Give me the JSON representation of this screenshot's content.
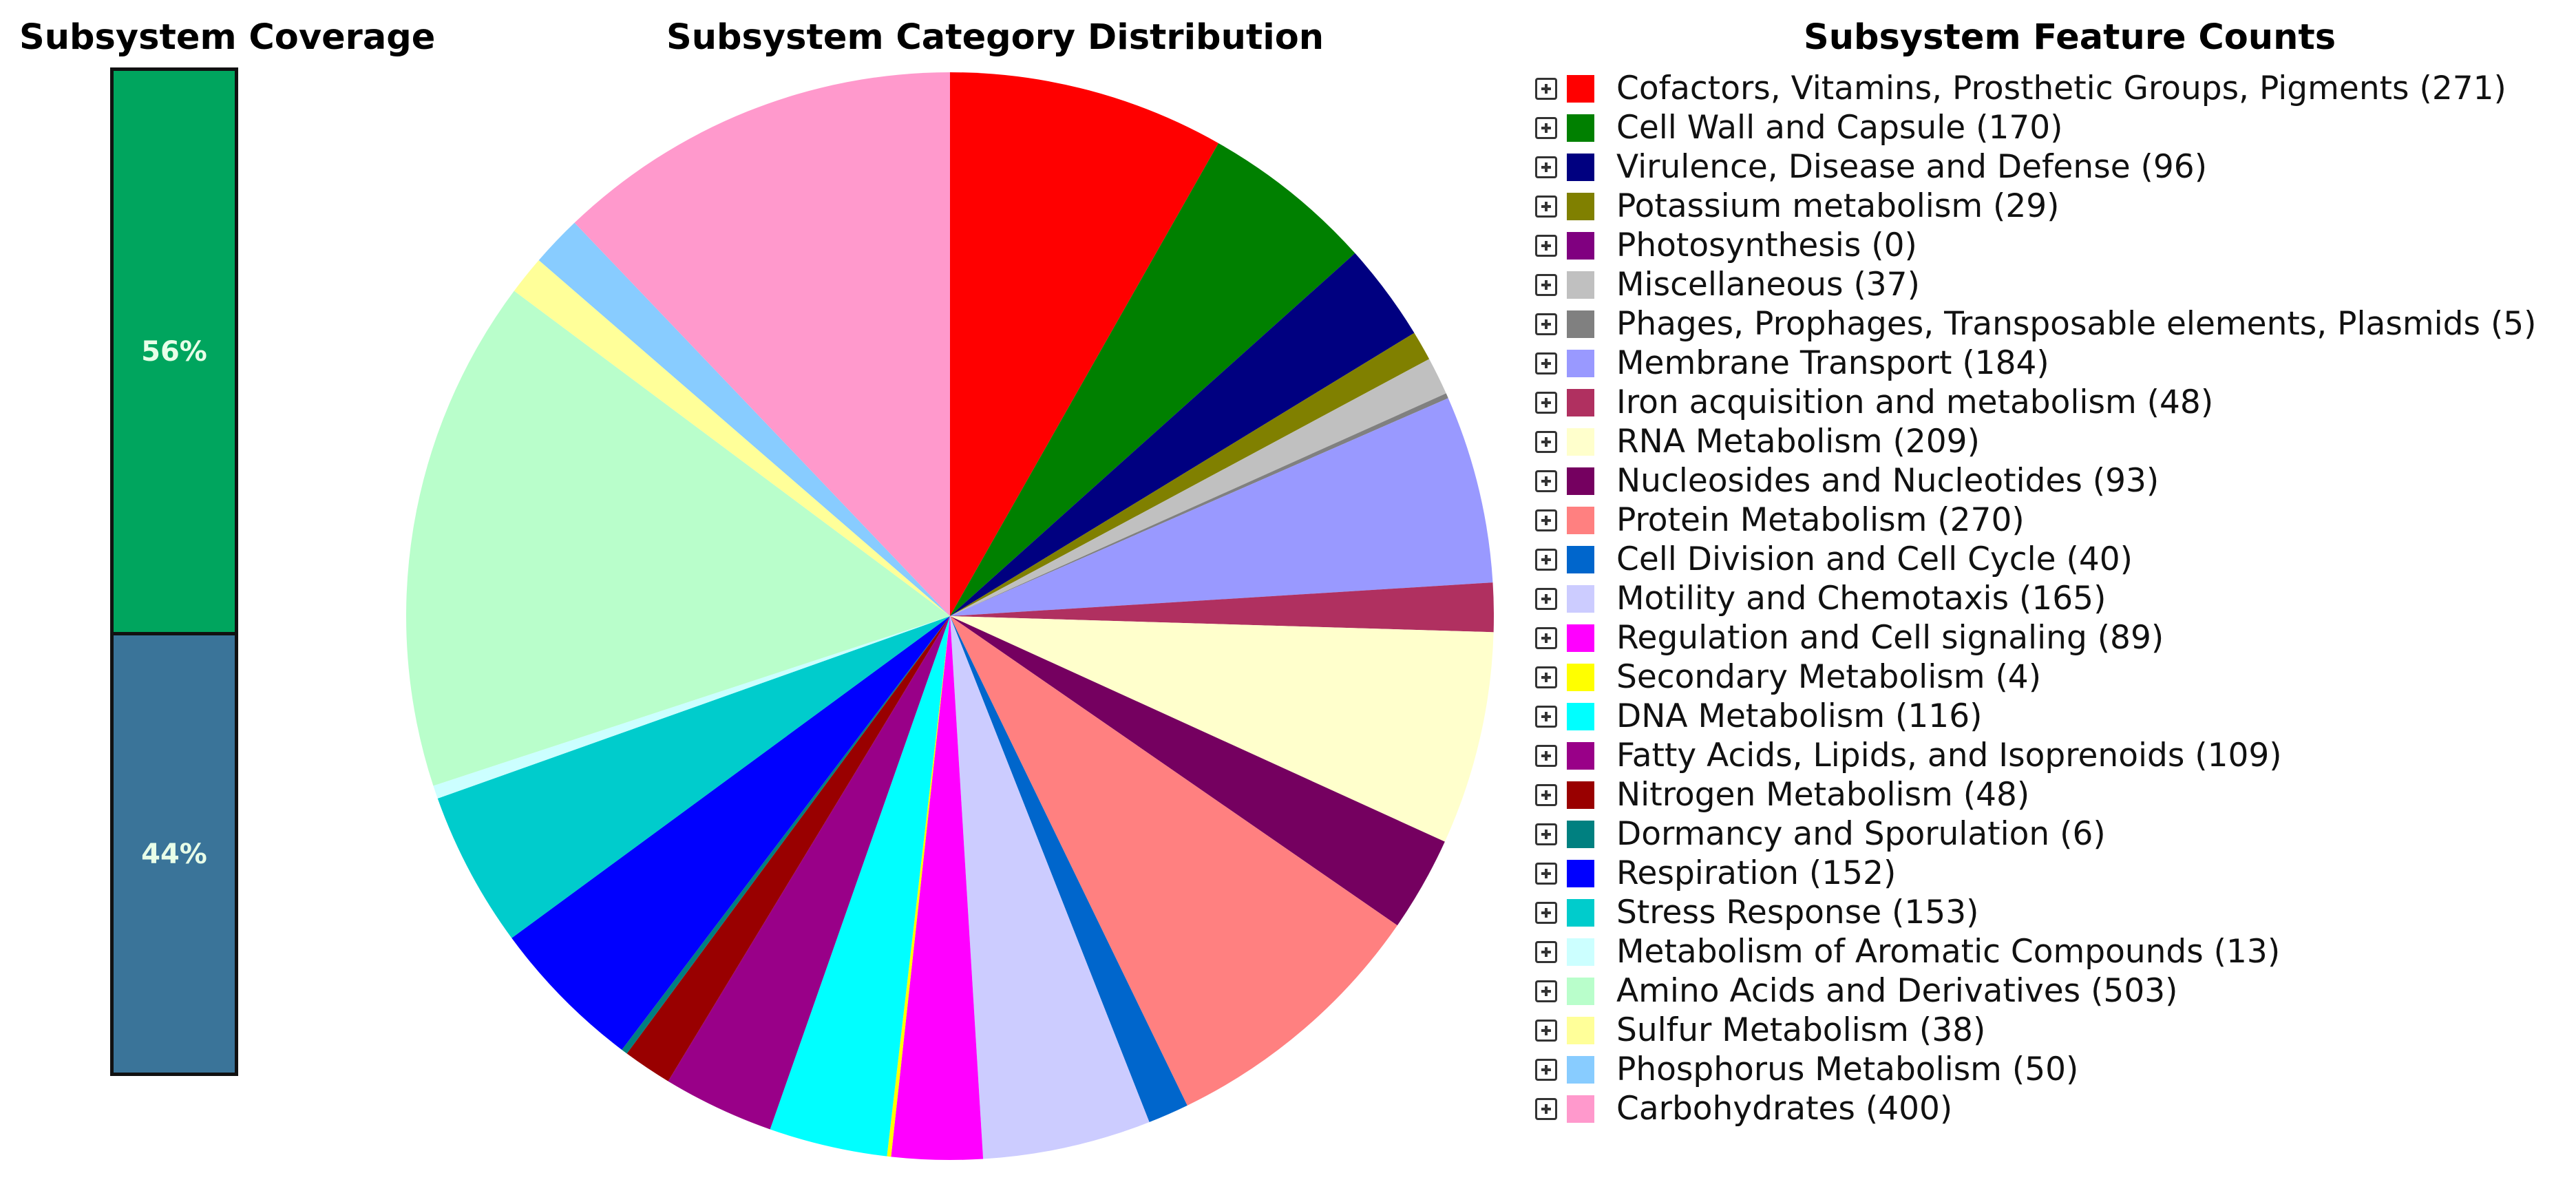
{
  "chart_data": [
    {
      "type": "bar",
      "title": "Subsystem Coverage",
      "segments": [
        {
          "label": "56%",
          "value": 56,
          "color": "#00a55e"
        },
        {
          "label": "44%",
          "value": 44,
          "color": "#3a7499"
        }
      ]
    },
    {
      "type": "pie",
      "title": "Subsystem Category Distribution"
    },
    {
      "type": "table",
      "title": "Subsystem Feature Counts",
      "categories": [
        {
          "name": "Cofactors, Vitamins, Prosthetic Groups, Pigments",
          "value": 271,
          "label": "Cofactors, Vitamins, Prosthetic Groups, Pigments (271)",
          "color": "#ff0000"
        },
        {
          "name": "Cell Wall and Capsule",
          "value": 170,
          "label": "Cell Wall and Capsule (170)",
          "color": "#008000"
        },
        {
          "name": "Virulence, Disease and Defense",
          "value": 96,
          "label": "Virulence, Disease and Defense (96)",
          "color": "#000080"
        },
        {
          "name": "Potassium metabolism",
          "value": 29,
          "label": "Potassium metabolism (29)",
          "color": "#808000"
        },
        {
          "name": "Photosynthesis",
          "value": 0,
          "label": "Photosynthesis (0)",
          "color": "#800080"
        },
        {
          "name": "Miscellaneous",
          "value": 37,
          "label": "Miscellaneous (37)",
          "color": "#c0c0c0"
        },
        {
          "name": "Phages, Prophages, Transposable elements, Plasmids",
          "value": 5,
          "label": "Phages, Prophages, Transposable elements, Plasmids (5)",
          "color": "#808080"
        },
        {
          "name": "Membrane Transport",
          "value": 184,
          "label": "Membrane Transport (184)",
          "color": "#9999ff"
        },
        {
          "name": "Iron acquisition and metabolism",
          "value": 48,
          "label": "Iron acquisition and metabolism (48)",
          "color": "#b03060"
        },
        {
          "name": "RNA Metabolism",
          "value": 209,
          "label": "RNA Metabolism (209)",
          "color": "#ffffcc"
        },
        {
          "name": "Nucleosides and Nucleotides",
          "value": 93,
          "label": "Nucleosides and Nucleotides (93)",
          "color": "#750060"
        },
        {
          "name": "Protein Metabolism",
          "value": 270,
          "label": "Protein Metabolism (270)",
          "color": "#ff8080"
        },
        {
          "name": "Cell Division and Cell Cycle",
          "value": 40,
          "label": "Cell Division and Cell Cycle (40)",
          "color": "#0066cc"
        },
        {
          "name": "Motility and Chemotaxis",
          "value": 165,
          "label": "Motility and Chemotaxis (165)",
          "color": "#ccccff"
        },
        {
          "name": "Regulation and Cell signaling",
          "value": 89,
          "label": "Regulation and Cell signaling (89)",
          "color": "#ff00ff"
        },
        {
          "name": "Secondary Metabolism",
          "value": 4,
          "label": "Secondary Metabolism (4)",
          "color": "#ffff00"
        },
        {
          "name": "DNA Metabolism",
          "value": 116,
          "label": "DNA Metabolism (116)",
          "color": "#00ffff"
        },
        {
          "name": "Fatty Acids, Lipids, and Isoprenoids",
          "value": 109,
          "label": "Fatty Acids, Lipids, and Isoprenoids (109)",
          "color": "#990088"
        },
        {
          "name": "Nitrogen Metabolism",
          "value": 48,
          "label": "Nitrogen Metabolism (48)",
          "color": "#990000"
        },
        {
          "name": "Dormancy and Sporulation",
          "value": 6,
          "label": "Dormancy and Sporulation (6)",
          "color": "#008080"
        },
        {
          "name": "Respiration",
          "value": 152,
          "label": "Respiration (152)",
          "color": "#0000ff"
        },
        {
          "name": "Stress Response",
          "value": 153,
          "label": "Stress Response (153)",
          "color": "#00cccc"
        },
        {
          "name": "Metabolism of Aromatic Compounds",
          "value": 13,
          "label": "Metabolism of Aromatic Compounds (13)",
          "color": "#ccffff"
        },
        {
          "name": "Amino Acids and Derivatives",
          "value": 503,
          "label": "Amino Acids and Derivatives (503)",
          "color": "#b9fecb"
        },
        {
          "name": "Sulfur Metabolism",
          "value": 38,
          "label": "Sulfur Metabolism (38)",
          "color": "#ffff99"
        },
        {
          "name": "Phosphorus Metabolism",
          "value": 50,
          "label": "Phosphorus Metabolism (50)",
          "color": "#88ccff"
        },
        {
          "name": "Carbohydrates",
          "value": 400,
          "label": "Carbohydrates (400)",
          "color": "#ff99cc"
        }
      ]
    }
  ]
}
